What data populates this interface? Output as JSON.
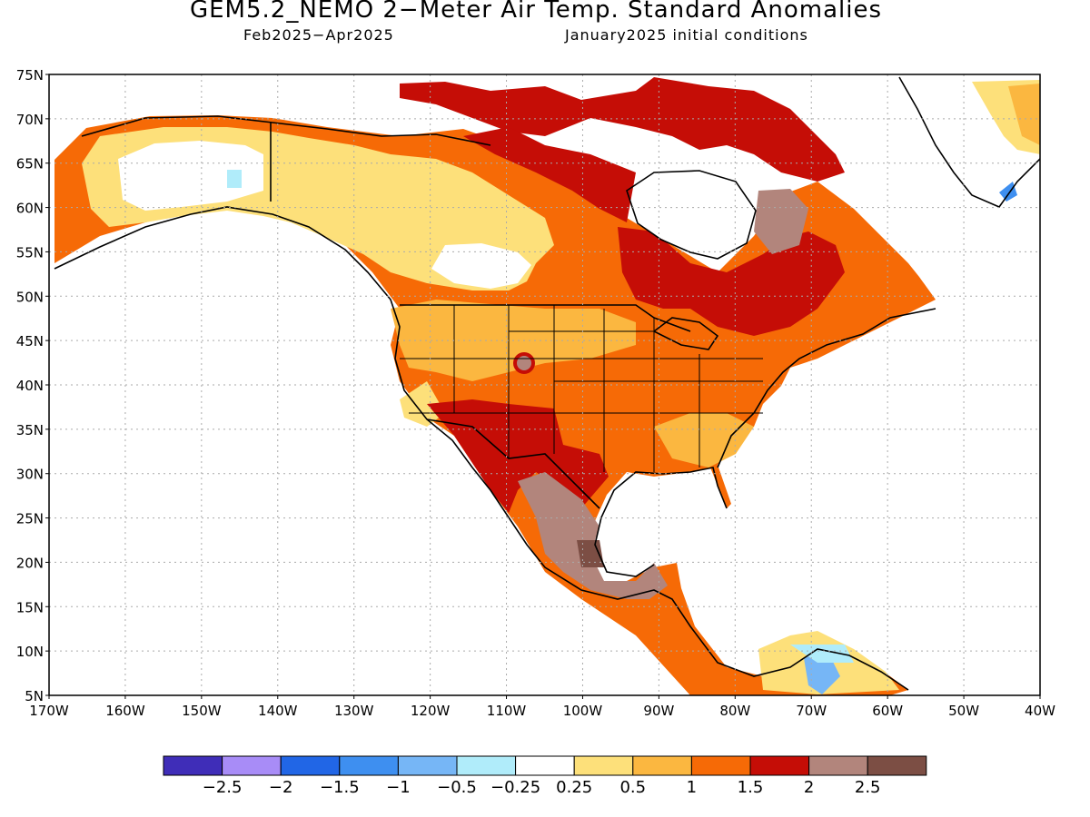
{
  "title": "GEM5.2_NEMO 2−Meter Air Temp. Standard Anomalies",
  "subtitle_left": "Feb2025−Apr2025",
  "subtitle_right": "January2025 initial conditions",
  "map": {
    "lon_range": [
      -170,
      -40
    ],
    "lat_range": [
      5,
      75
    ],
    "grid": true,
    "lat_ticks": [
      "75N",
      "70N",
      "65N",
      "60N",
      "55N",
      "50N",
      "45N",
      "40N",
      "35N",
      "30N",
      "25N",
      "20N",
      "15N",
      "10N",
      "5N"
    ],
    "lon_ticks": [
      "170W",
      "160W",
      "150W",
      "140W",
      "130W",
      "120W",
      "110W",
      "100W",
      "90W",
      "80W",
      "70W",
      "60W",
      "50W",
      "40W"
    ]
  },
  "colorbar": {
    "colors": [
      "#3f2db8",
      "#a88cf7",
      "#2166e6",
      "#3e8ff0",
      "#76b6f6",
      "#b0ecfa",
      "#ffffff",
      "#fde07a",
      "#fbb740",
      "#f66a06",
      "#c50d06",
      "#b2857c",
      "#7c4e44"
    ],
    "labels": [
      "−2.5",
      "−2",
      "−1.5",
      "−1",
      "−0.5",
      "−0.25",
      "0.25",
      "0.5",
      "1",
      "1.5",
      "2",
      "2.5"
    ]
  }
}
